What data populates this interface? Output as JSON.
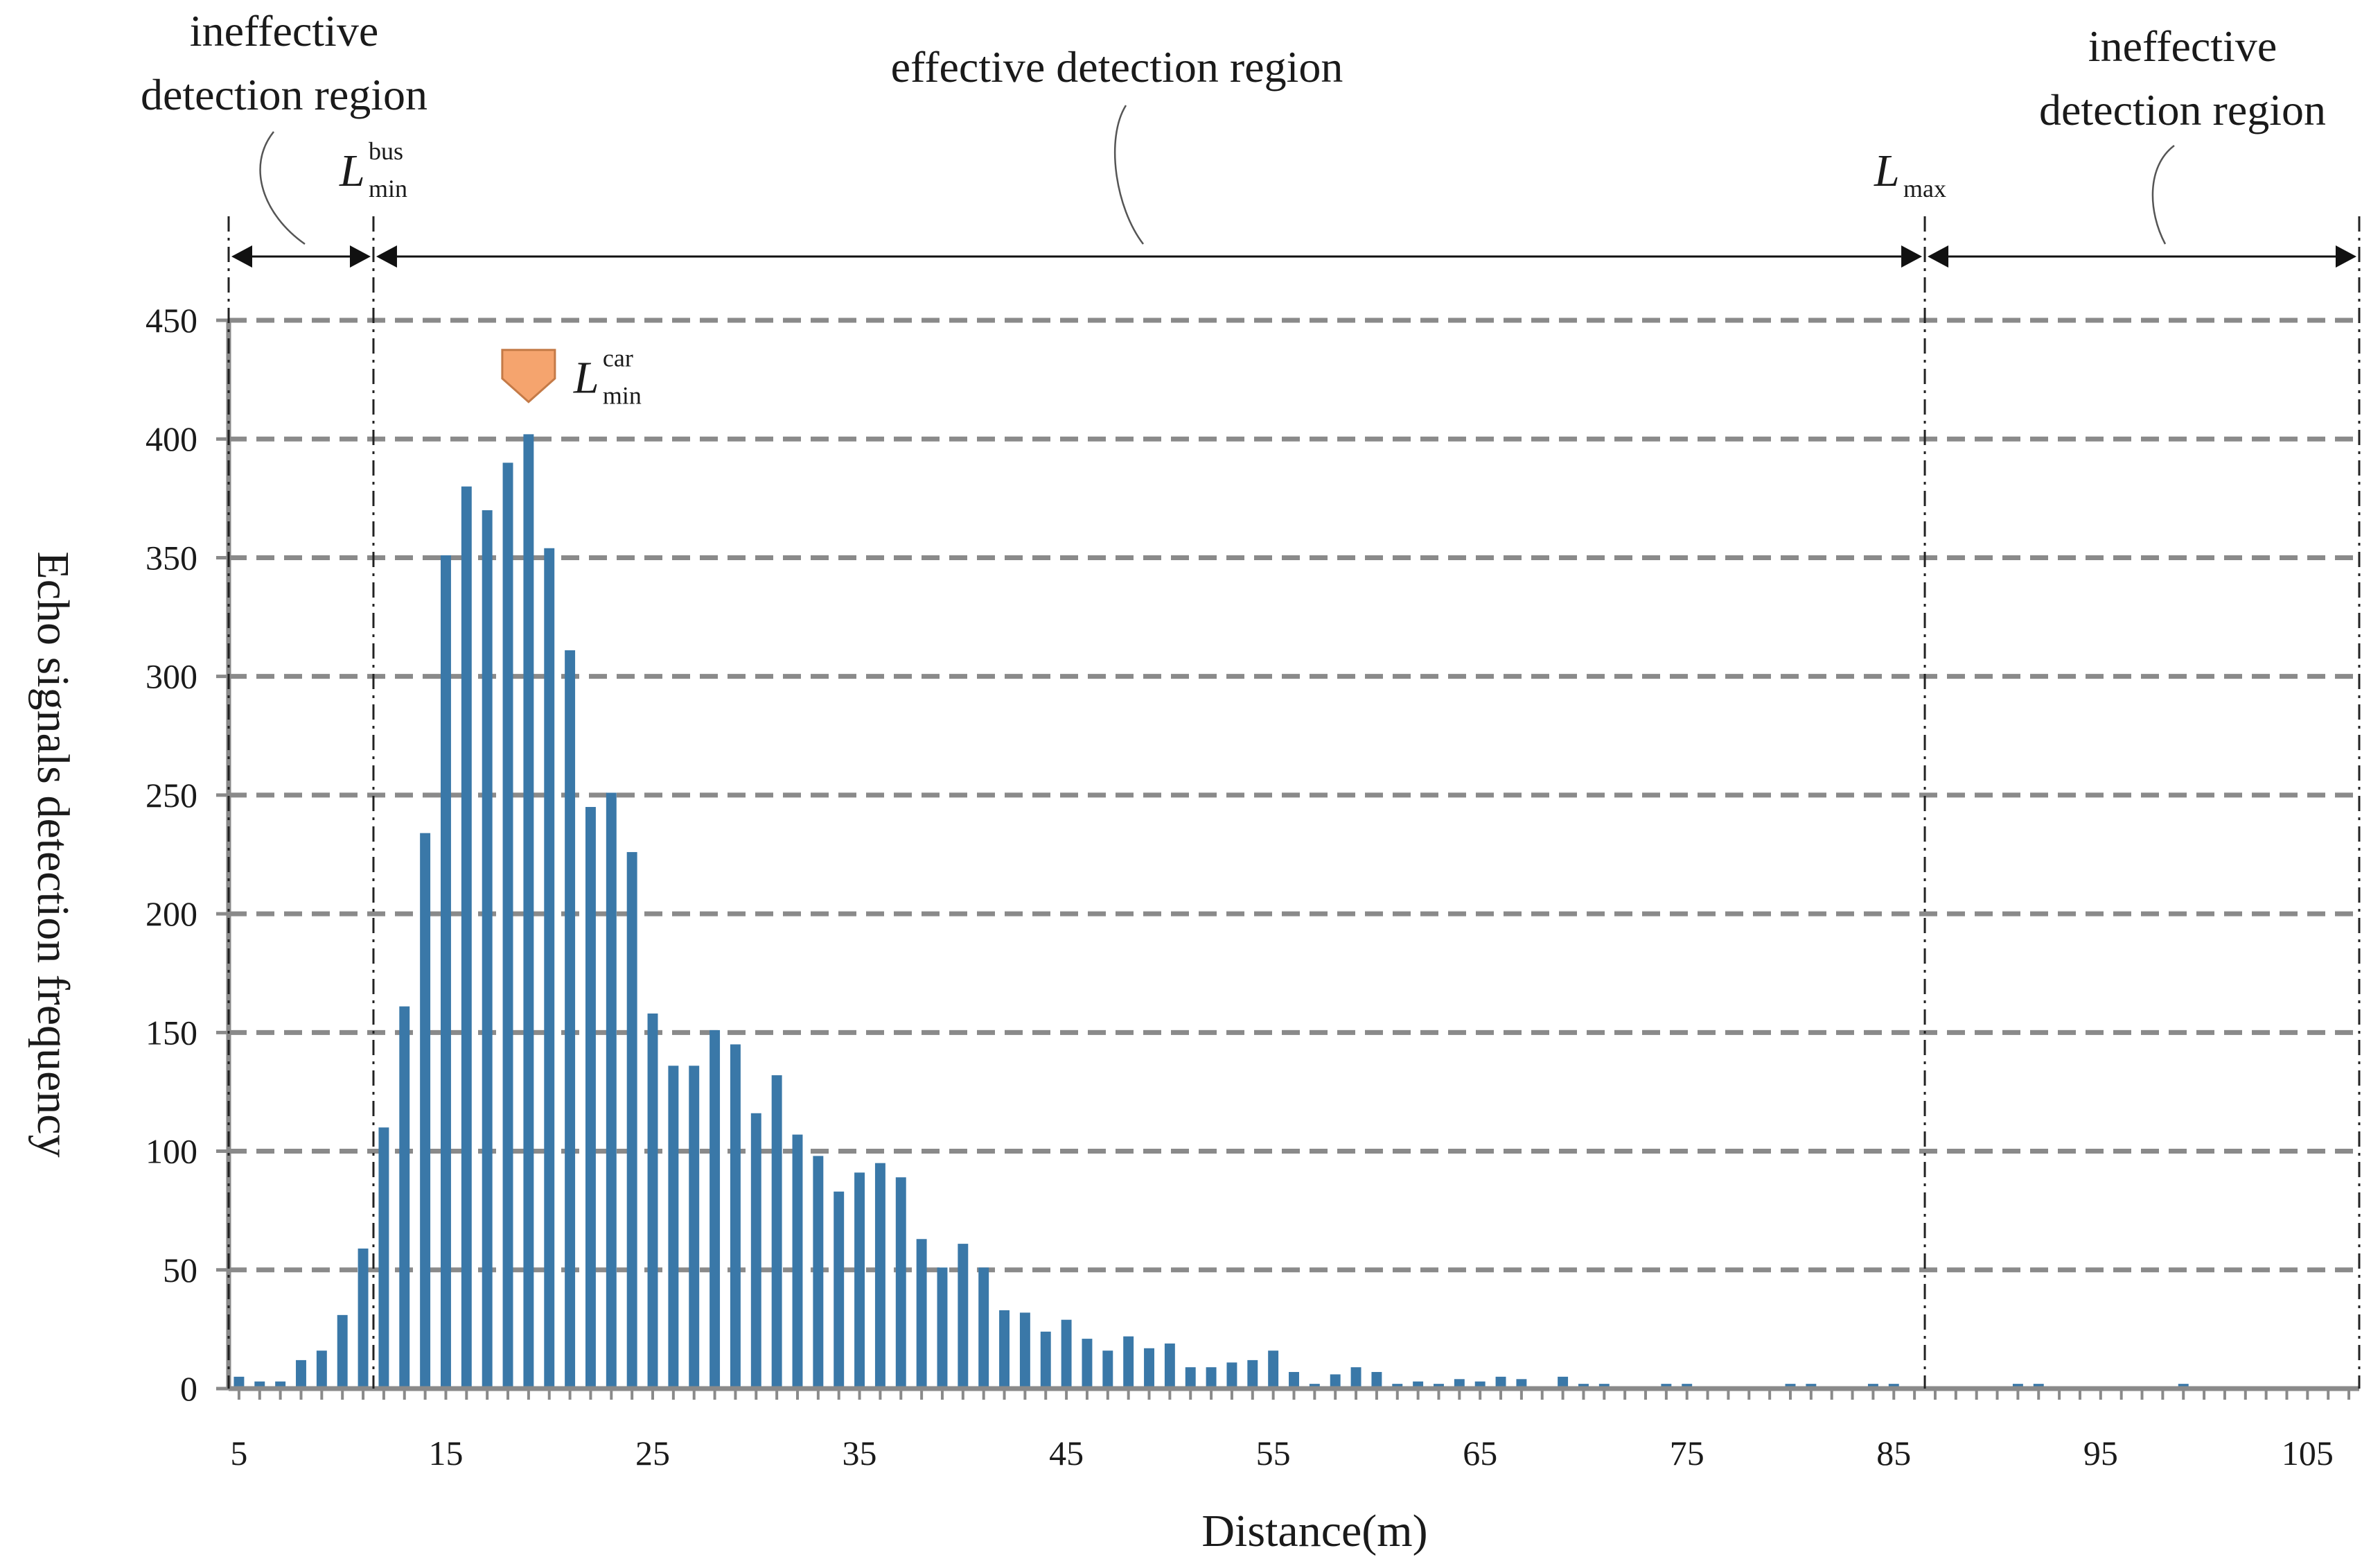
{
  "chart_data": {
    "type": "bar",
    "title": "",
    "xlabel": "Distance(m)",
    "ylabel": "Echo signals detection frequency",
    "xlim": [
      4.5,
      107.5
    ],
    "ylim": [
      0,
      450
    ],
    "yticks": [
      0,
      50,
      100,
      150,
      200,
      250,
      300,
      350,
      400,
      450
    ],
    "xticks": [
      5,
      15,
      25,
      35,
      45,
      55,
      65,
      75,
      85,
      95,
      105
    ],
    "grid": "horizontal dashed",
    "series": [
      {
        "name": "Echo signals detection frequency",
        "color": "#3a78a8",
        "x": [
          5,
          6,
          7,
          8,
          9,
          10,
          11,
          12,
          13,
          14,
          15,
          16,
          17,
          18,
          19,
          20,
          21,
          22,
          23,
          24,
          25,
          26,
          27,
          28,
          29,
          30,
          31,
          32,
          33,
          34,
          35,
          36,
          37,
          38,
          39,
          40,
          41,
          42,
          43,
          44,
          45,
          46,
          47,
          48,
          49,
          50,
          51,
          52,
          53,
          54,
          55,
          56,
          57,
          58,
          59,
          60,
          61,
          62,
          63,
          64,
          65,
          66,
          67,
          68,
          69,
          70,
          71,
          72,
          73,
          74,
          75,
          76,
          77,
          78,
          79,
          80,
          81,
          82,
          83,
          84,
          85,
          86,
          87,
          88,
          89,
          90,
          91,
          92,
          93,
          94,
          95,
          96,
          97,
          98,
          99,
          100,
          101,
          102,
          103,
          104,
          105,
          106
        ],
        "values": [
          5,
          3,
          3,
          12,
          16,
          31,
          59,
          110,
          161,
          234,
          351,
          380,
          370,
          390,
          402,
          354,
          311,
          245,
          251,
          226,
          158,
          136,
          136,
          151,
          145,
          116,
          132,
          107,
          98,
          83,
          91,
          95,
          89,
          63,
          51,
          61,
          51,
          33,
          32,
          24,
          29,
          21,
          16,
          22,
          17,
          19,
          9,
          9,
          11,
          12,
          16,
          7,
          2,
          6,
          9,
          7,
          2,
          3,
          2,
          4,
          3,
          5,
          4,
          1,
          5,
          2,
          2,
          1,
          1,
          2,
          2,
          1,
          1,
          1,
          1,
          2,
          2,
          1,
          1,
          2,
          2,
          1,
          1,
          1,
          0,
          1,
          2,
          2,
          1,
          1,
          0,
          1,
          1,
          1,
          2,
          1,
          0,
          0,
          1,
          1,
          1,
          1
        ]
      }
    ],
    "markers": [
      {
        "name": "L_min_bus",
        "x": 11.5,
        "style": "dash-dot vertical line",
        "label": "L",
        "sub": "min",
        "sup": "bus"
      },
      {
        "name": "L_max",
        "x": 86.5,
        "style": "dash-dot vertical line",
        "label": "L",
        "sub": "max"
      },
      {
        "name": "L_min_car",
        "x": 19,
        "y": 420,
        "style": "orange pentagon pointer",
        "color": "#f5a46e",
        "label": "L",
        "sub": "min",
        "sup": "car"
      },
      {
        "name": "right_boundary",
        "x": 107.5,
        "style": "dash-dot vertical line"
      },
      {
        "name": "left_boundary",
        "x": 4.5,
        "style": "dash-dot vertical line"
      }
    ],
    "annotations": [
      {
        "name": "left-ineffective",
        "lines": [
          "ineffective",
          "detection region"
        ],
        "from": 4.5,
        "to": 11.5
      },
      {
        "name": "effective",
        "lines": [
          "effective detection region"
        ],
        "from": 11.5,
        "to": 86.5
      },
      {
        "name": "right-ineffective",
        "lines": [
          "ineffective",
          "detection region"
        ],
        "from": 86.5,
        "to": 107.5
      }
    ]
  }
}
